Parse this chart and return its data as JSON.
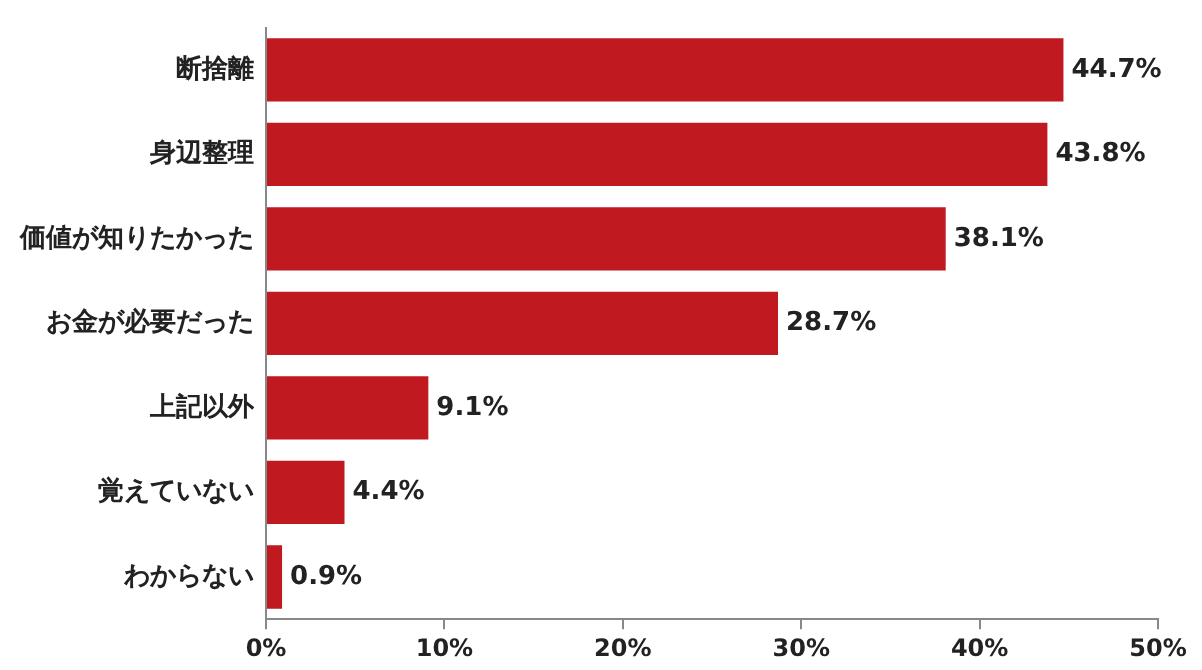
{
  "chart_data": {
    "type": "bar",
    "orientation": "horizontal",
    "categories": [
      "断捨離",
      "身辺整理",
      "価値が知りたかった",
      "お金が必要だった",
      "上記以外",
      "覚えていない",
      "わからない"
    ],
    "values": [
      44.7,
      43.8,
      38.1,
      28.7,
      9.1,
      4.4,
      0.9
    ],
    "value_labels": [
      "44.7%",
      "43.8%",
      "38.1%",
      "28.7%",
      "9.1%",
      "4.4%",
      "0.9%"
    ],
    "color": "#c0191f",
    "xlim": [
      0,
      50
    ],
    "xticks": [
      {
        "value": 0,
        "label": "0%"
      },
      {
        "value": 10,
        "label": "10%"
      },
      {
        "value": 20,
        "label": "20%"
      },
      {
        "value": 30,
        "label": "30%"
      },
      {
        "value": 40,
        "label": "40%"
      },
      {
        "value": 50,
        "label": "50%"
      }
    ],
    "grid": false,
    "legend": false
  }
}
